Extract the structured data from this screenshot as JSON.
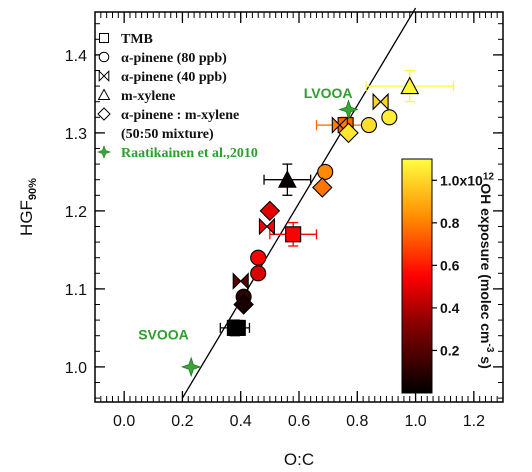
{
  "chart_data": {
    "type": "scatter",
    "xlabel": "O:C",
    "ylabel_main": "HGF",
    "ylabel_sub": "90%",
    "xlim": [
      -0.1,
      1.3
    ],
    "ylim": [
      0.955,
      1.455
    ],
    "xticks": [
      "0.0",
      "0.2",
      "0.4",
      "0.6",
      "0.8",
      "1.0",
      "1.2"
    ],
    "xtick_values": [
      0.0,
      0.2,
      0.4,
      0.6,
      0.8,
      1.0,
      1.2
    ],
    "yticks": [
      "1.0",
      "1.1",
      "1.2",
      "1.3",
      "1.4"
    ],
    "ytick_values": [
      1.0,
      1.1,
      1.2,
      1.3,
      1.4
    ],
    "fit_line": {
      "x": [
        0.2,
        1.0
      ],
      "y": [
        0.96,
        1.46
      ]
    },
    "legend": [
      {
        "symbol": "square",
        "label": "TMB",
        "green": false
      },
      {
        "symbol": "circle",
        "label": "α-pinene (80 ppb)",
        "green": false
      },
      {
        "symbol": "bowtie",
        "label": "α-pinene (40 ppb)",
        "green": false
      },
      {
        "symbol": "triangle",
        "label": "m-xylene",
        "green": false
      },
      {
        "symbol": "diamond",
        "label": "α-pinene : m-xylene",
        "green": false
      },
      {
        "symbol": "none",
        "label": "(50:50 mixture)",
        "green": false
      },
      {
        "symbol": "star",
        "label": "Raatikainen et al.,2010",
        "green": true
      }
    ],
    "annotations": [
      {
        "text": "LVOOA",
        "x": 0.7,
        "y": 1.345
      },
      {
        "text": "SVOOA",
        "x": 0.135,
        "y": 1.035
      }
    ],
    "colorbar": {
      "label": "OH exposure (molec cm",
      "label_sup": "-3",
      "label_end": " s)",
      "min": 0.0,
      "max": 1.1,
      "ticks": [
        "0.2",
        "0.4",
        "0.6",
        "0.8",
        "1.0x10"
      ],
      "tick_values": [
        0.2,
        0.4,
        0.6,
        0.8,
        1.0
      ],
      "top_tick_sup": "12"
    },
    "series": [
      {
        "name": "TMB",
        "symbol": "square",
        "points": [
          {
            "x": 0.38,
            "y": 1.05,
            "c": 0.02,
            "xerr": 0.05,
            "yerr": 0.01
          },
          {
            "x": 0.39,
            "y": 1.05,
            "c": 0.0,
            "xerr": 0,
            "yerr": 0
          },
          {
            "x": 0.58,
            "y": 1.17,
            "c": 0.55,
            "xerr": 0.08,
            "yerr": 0.015
          },
          {
            "x": 0.76,
            "y": 1.31,
            "c": 0.75,
            "xerr": 0.1,
            "yerr": 0.01
          }
        ]
      },
      {
        "name": "α-pinene (80 ppb)",
        "symbol": "circle",
        "points": [
          {
            "x": 0.41,
            "y": 1.09,
            "c": 0.1,
            "xerr": 0,
            "yerr": 0
          },
          {
            "x": 0.46,
            "y": 1.12,
            "c": 0.48,
            "xerr": 0,
            "yerr": 0
          },
          {
            "x": 0.46,
            "y": 1.14,
            "c": 0.55,
            "xerr": 0,
            "yerr": 0
          },
          {
            "x": 0.69,
            "y": 1.25,
            "c": 0.82,
            "xerr": 0,
            "yerr": 0
          },
          {
            "x": 0.84,
            "y": 1.31,
            "c": 1.02,
            "xerr": 0,
            "yerr": 0
          },
          {
            "x": 0.91,
            "y": 1.32,
            "c": 1.06,
            "xerr": 0,
            "yerr": 0
          }
        ]
      },
      {
        "name": "α-pinene (40 ppb)",
        "symbol": "bowtie",
        "points": [
          {
            "x": 0.4,
            "y": 1.11,
            "c": 0.2,
            "xerr": 0,
            "yerr": 0
          },
          {
            "x": 0.49,
            "y": 1.18,
            "c": 0.55,
            "xerr": 0,
            "yerr": 0
          },
          {
            "x": 0.74,
            "y": 1.31,
            "c": 0.8,
            "xerr": 0,
            "yerr": 0
          },
          {
            "x": 0.88,
            "y": 1.34,
            "c": 1.0,
            "xerr": 0,
            "yerr": 0
          }
        ]
      },
      {
        "name": "m-xylene",
        "symbol": "triangle",
        "points": [
          {
            "x": 0.56,
            "y": 1.24,
            "c": 0.02,
            "xerr": 0.08,
            "yerr": 0.02
          },
          {
            "x": 0.98,
            "y": 1.36,
            "c": 1.08,
            "xerr": 0.15,
            "yerr": 0.02
          }
        ]
      },
      {
        "name": "α-pinene : m-xylene (50:50 mixture)",
        "symbol": "diamond",
        "points": [
          {
            "x": 0.41,
            "y": 1.08,
            "c": 0.06,
            "xerr": 0,
            "yerr": 0
          },
          {
            "x": 0.5,
            "y": 1.2,
            "c": 0.5,
            "xerr": 0,
            "yerr": 0
          },
          {
            "x": 0.68,
            "y": 1.23,
            "c": 0.78,
            "xerr": 0,
            "yerr": 0
          },
          {
            "x": 0.77,
            "y": 1.3,
            "c": 1.04,
            "xerr": 0,
            "yerr": 0
          }
        ]
      },
      {
        "name": "Raatikainen et al.,2010",
        "symbol": "star",
        "points": [
          {
            "x": 0.23,
            "y": 1.0,
            "c": null,
            "xerr": 0,
            "yerr": 0
          },
          {
            "x": 0.77,
            "y": 1.33,
            "c": null,
            "xerr": 0,
            "yerr": 0
          }
        ]
      }
    ]
  }
}
